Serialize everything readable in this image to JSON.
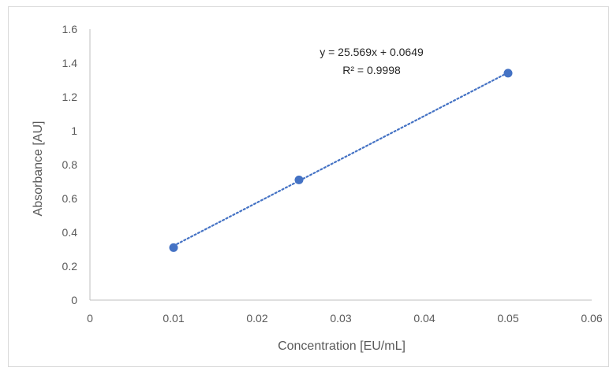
{
  "chart_data": {
    "type": "scatter",
    "title": "",
    "xlabel": "Concentration [EU/mL]",
    "ylabel": "Absorbance [AU]",
    "xlim": [
      0,
      0.06
    ],
    "ylim": [
      0,
      1.6
    ],
    "x_ticks": [
      "0",
      "0.01",
      "0.02",
      "0.03",
      "0.04",
      "0.05",
      "0.06"
    ],
    "y_ticks": [
      "0",
      "0.2",
      "0.4",
      "0.6",
      "0.8",
      "1",
      "1.2",
      "1.4",
      "1.6"
    ],
    "grid": false,
    "series": [
      {
        "x": [
          0.01,
          0.025,
          0.05
        ],
        "y": [
          0.31,
          0.71,
          1.34
        ],
        "color": "#4472c4",
        "marker": "circle"
      }
    ],
    "trendline": {
      "type": "linear",
      "slope": 25.569,
      "intercept": 0.0649,
      "x_range": [
        0.01,
        0.05
      ],
      "style": "dotted",
      "color": "#4472c4"
    },
    "annotations": {
      "equation": "y = 25.569x + 0.0649",
      "r_squared": "R² = 0.9998"
    }
  }
}
